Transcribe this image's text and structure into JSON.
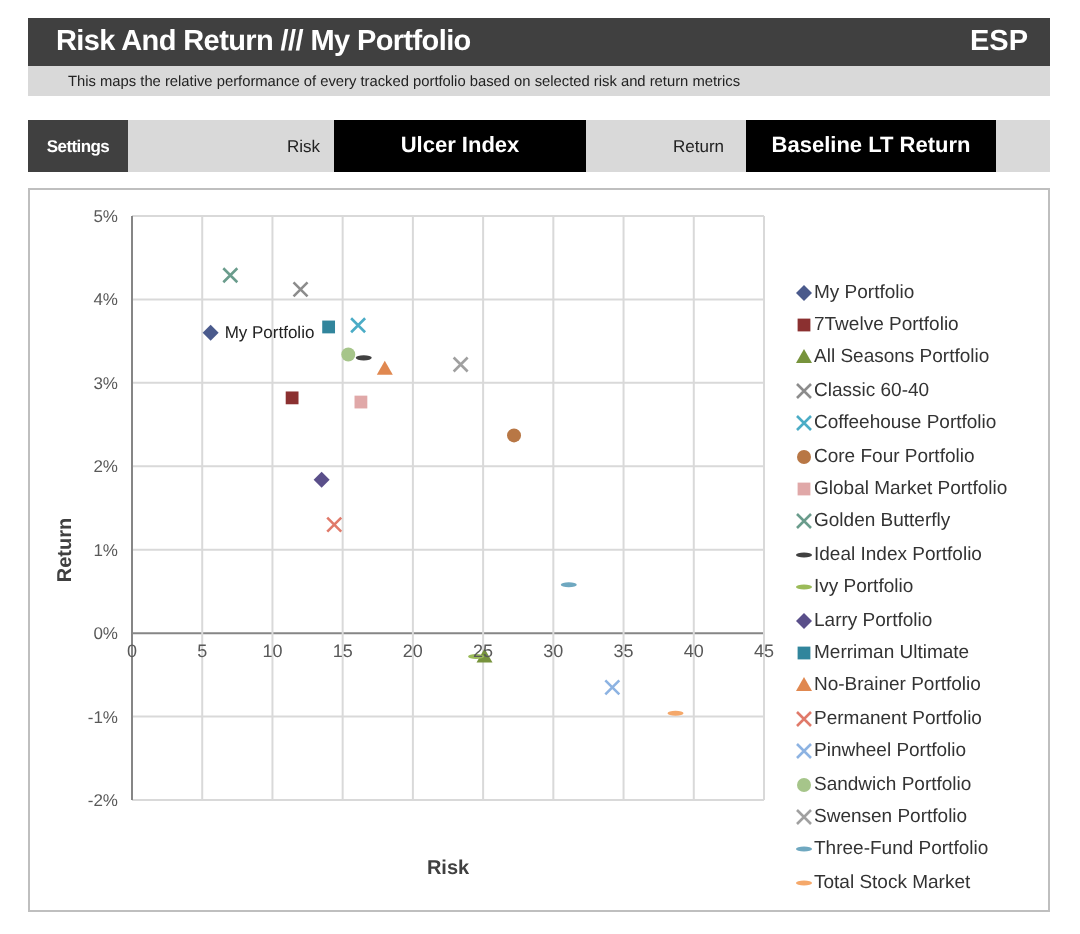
{
  "chart_data": {
    "type": "scatter",
    "title": "Risk And Return /// My Portfolio",
    "subtitle": "This maps the relative performance of every tracked portfolio based on selected risk and return metrics",
    "xlabel": "Risk",
    "ylabel": "Return",
    "annotations": [
      "ESP",
      "Settings",
      "Risk",
      "Ulcer Index",
      "Return",
      "Baseline LT Return",
      {
        "text": "My Portfolio",
        "x": 5.6,
        "y": 3.6
      }
    ],
    "xlim": [
      0,
      45
    ],
    "xticks": [
      0,
      5,
      10,
      15,
      20,
      25,
      30,
      35,
      40,
      45
    ],
    "ylim": [
      -2,
      5
    ],
    "yticks": [
      {
        "value": -2,
        "label": "-2%"
      },
      {
        "value": -1,
        "label": "-1%"
      },
      {
        "value": 0,
        "label": "0%"
      },
      {
        "value": 1,
        "label": "1%"
      },
      {
        "value": 2,
        "label": "2%"
      },
      {
        "value": 3,
        "label": "3%"
      },
      {
        "value": 4,
        "label": "4%"
      },
      {
        "value": 5,
        "label": "5%"
      }
    ],
    "grid": true,
    "legend": "right",
    "series": [
      {
        "name": "My Portfolio",
        "color": "#4a5a8c",
        "marker": "diamond",
        "x": [
          5.6
        ],
        "values": [
          3.6
        ]
      },
      {
        "name": "7Twelve Portfolio",
        "color": "#8b3030",
        "marker": "square",
        "x": [
          11.4
        ],
        "values": [
          2.82
        ]
      },
      {
        "name": "All Seasons Portfolio",
        "color": "#77933c",
        "marker": "triangle",
        "x": [
          25.1
        ],
        "values": [
          -0.28
        ]
      },
      {
        "name": "Classic 60-40",
        "color": "#8c8c8c",
        "marker": "cross",
        "x": [
          12.0
        ],
        "values": [
          4.12
        ]
      },
      {
        "name": "Coffeehouse Portfolio",
        "color": "#4bacc6",
        "marker": "cross",
        "x": [
          16.1
        ],
        "values": [
          3.69
        ]
      },
      {
        "name": "Core Four Portfolio",
        "color": "#b87745",
        "marker": "circle",
        "x": [
          27.2
        ],
        "values": [
          2.37
        ]
      },
      {
        "name": "Global Market Portfolio",
        "color": "#e0a8a8",
        "marker": "square",
        "x": [
          16.3
        ],
        "values": [
          2.77
        ]
      },
      {
        "name": "Golden Butterfly",
        "color": "#6a9c8c",
        "marker": "cross",
        "x": [
          7.0
        ],
        "values": [
          4.29
        ]
      },
      {
        "name": "Ideal Index Portfolio",
        "color": "#404040",
        "x": [
          16.5
        ],
        "values": [
          3.3
        ]
      },
      {
        "name": "Ivy Portfolio",
        "color": "#9bbb59",
        "x": [
          24.5
        ],
        "values": [
          -0.28
        ]
      },
      {
        "name": "Larry Portfolio",
        "color": "#5a4f8a",
        "marker": "diamond",
        "x": [
          13.5
        ],
        "values": [
          1.84
        ]
      },
      {
        "name": "Merriman Ultimate",
        "color": "#31859c",
        "marker": "square",
        "x": [
          14.0
        ],
        "values": [
          3.67
        ]
      },
      {
        "name": "No-Brainer Portfolio",
        "color": "#e08850",
        "marker": "triangle",
        "x": [
          18.0
        ],
        "values": [
          3.17
        ]
      },
      {
        "name": "Permanent Portfolio",
        "color": "#e07a6a",
        "marker": "cross",
        "x": [
          14.4
        ],
        "values": [
          1.3
        ]
      },
      {
        "name": "Pinwheel Portfolio",
        "color": "#8db3e2",
        "marker": "cross",
        "x": [
          34.2
        ],
        "values": [
          -0.65
        ]
      },
      {
        "name": "Sandwich Portfolio",
        "color": "#a6c58a",
        "marker": "circle",
        "x": [
          15.4
        ],
        "values": [
          3.34
        ]
      },
      {
        "name": "Swensen Portfolio",
        "color": "#a0a0a0",
        "marker": "cross",
        "x": [
          23.4
        ],
        "values": [
          3.22
        ]
      },
      {
        "name": "Three-Fund Portfolio",
        "color": "#6fa8c0",
        "x": [
          31.1
        ],
        "values": [
          0.58
        ]
      },
      {
        "name": "Total Stock Market",
        "color": "#f5a86a",
        "x": [
          38.7
        ],
        "values": [
          -0.96
        ]
      }
    ]
  }
}
